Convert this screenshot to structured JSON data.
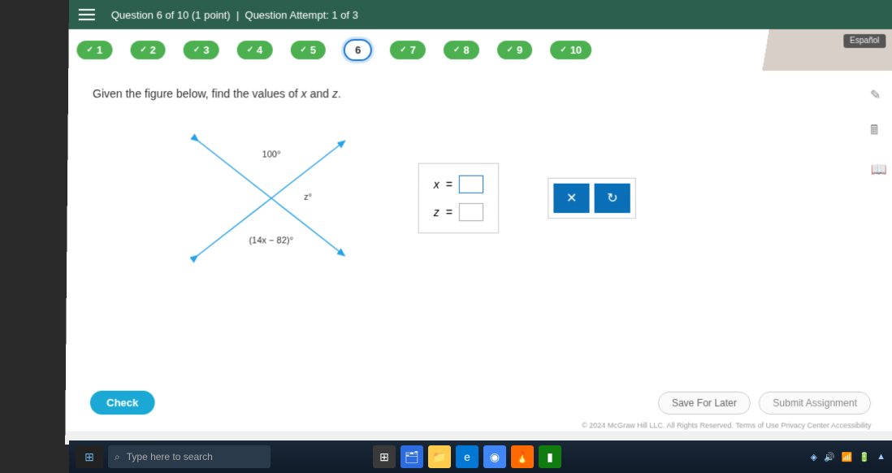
{
  "header": {
    "question_label": "Question 6 of 10 (1 point)",
    "attempt_label": "Question Attempt: 1 of 3"
  },
  "nav": {
    "items": [
      {
        "num": "1",
        "done": true,
        "current": false
      },
      {
        "num": "2",
        "done": true,
        "current": false
      },
      {
        "num": "3",
        "done": true,
        "current": false
      },
      {
        "num": "4",
        "done": true,
        "current": false
      },
      {
        "num": "5",
        "done": true,
        "current": false
      },
      {
        "num": "6",
        "done": false,
        "current": true
      },
      {
        "num": "7",
        "done": true,
        "current": false
      },
      {
        "num": "8",
        "done": true,
        "current": false
      },
      {
        "num": "9",
        "done": true,
        "current": false
      },
      {
        "num": "10",
        "done": true,
        "current": false
      }
    ],
    "corner_label": "Español"
  },
  "problem": {
    "prompt_prefix": "Given the figure below, find the values of ",
    "var1": "x",
    "prompt_and": " and ",
    "var2": "z",
    "prompt_suffix": ".",
    "figure": {
      "angle_top": "100°",
      "angle_right": "z°",
      "expr_bottom": "(14x − 82)°",
      "line_color": "#29a3e8",
      "arrow_color": "#29a3e8"
    },
    "answers": {
      "row1_var": "x",
      "row1_eq": "=",
      "row2_var": "z",
      "row2_eq": "="
    },
    "tools": {
      "clear_label": "✕",
      "reset_label": "↻"
    }
  },
  "footer": {
    "check_label": "Check",
    "save_label": "Save For Later",
    "submit_label": "Submit Assignment",
    "copyright": "© 2024 McGraw Hill LLC. All Rights Reserved.   Terms of Use   Privacy Center   Accessibility"
  },
  "taskbar": {
    "search_placeholder": "Type here to search",
    "icons": [
      {
        "bg": "#3a3a3a",
        "glyph": "⊞",
        "color": "#fff"
      },
      {
        "bg": "#2d6cdf",
        "glyph": "🗂",
        "color": "#fff"
      },
      {
        "bg": "#ffcc4d",
        "glyph": "📁",
        "color": "#333"
      },
      {
        "bg": "#0078d4",
        "glyph": "e",
        "color": "#fff"
      },
      {
        "bg": "#4285f4",
        "glyph": "◉",
        "color": "#fff"
      },
      {
        "bg": "#ff6a00",
        "glyph": "🔥",
        "color": "#fff"
      },
      {
        "bg": "#107c10",
        "glyph": "▮",
        "color": "#fff"
      }
    ],
    "tray_items": [
      "◈",
      "🔊",
      "📶",
      "🔋",
      "▲"
    ]
  },
  "colors": {
    "header_bg": "#2d5f4f",
    "pill_green": "#4caf50",
    "pill_current_border": "#1976d2",
    "tool_btn_bg": "#0b6fb8",
    "check_btn_bg": "#1ba8d4"
  }
}
